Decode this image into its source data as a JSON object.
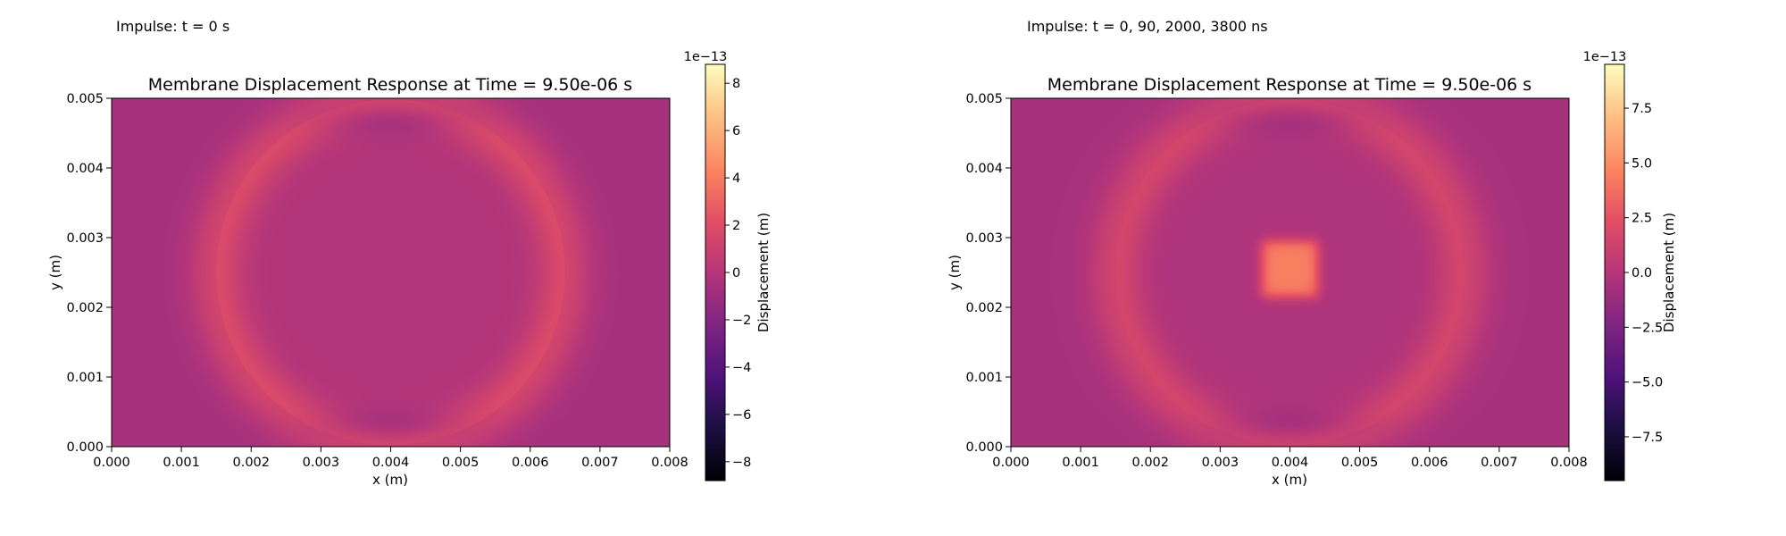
{
  "chart_data": [
    {
      "type": "heatmap",
      "panel_label": "Impulse: t = 0 s",
      "title": "Membrane Displacement Response at Time = 9.50e-06 s",
      "xlabel": "x (m)",
      "ylabel": "y (m)",
      "xlim": [
        0,
        0.008
      ],
      "ylim": [
        0,
        0.005
      ],
      "xticks": [
        "0.000",
        "0.001",
        "0.002",
        "0.003",
        "0.004",
        "0.005",
        "0.006",
        "0.007",
        "0.008"
      ],
      "yticks": [
        "0.000",
        "0.001",
        "0.002",
        "0.003",
        "0.004",
        "0.005"
      ],
      "colormap": "magma",
      "colorbar": {
        "label": "Displacement (m)",
        "exponent": "1e−13",
        "vmin": -8.8,
        "vmax": 8.8,
        "ticks": [
          -8,
          -6,
          -4,
          -2,
          0,
          2,
          4,
          6,
          8
        ],
        "tick_labels": [
          "−8",
          "−6",
          "−4",
          "−2",
          "0",
          "2",
          "4",
          "6",
          "8"
        ]
      },
      "field": {
        "base": -0.6,
        "ring": {
          "cx": 0.004,
          "cy": 0.0025,
          "rx": 0.0025,
          "ry": 0.00248,
          "width": 0.00028,
          "amplitude": 1.9
        },
        "lobes": [
          {
            "x": 0.004,
            "y": 0.0047,
            "sx": 0.0008,
            "sy": 0.00018,
            "amplitude": -1.3
          },
          {
            "x": 0.004,
            "y": 0.0003,
            "sx": 0.0008,
            "sy": 0.00018,
            "amplitude": -1.3
          }
        ],
        "inner_offset": 0.45,
        "square": null
      }
    },
    {
      "type": "heatmap",
      "panel_label": "Impulse: t = 0, 90, 2000, 3800 ns",
      "title": "Membrane Displacement Response at Time = 9.50e-06 s",
      "xlabel": "x (m)",
      "ylabel": "y (m)",
      "xlim": [
        0,
        0.008
      ],
      "ylim": [
        0,
        0.005
      ],
      "xticks": [
        "0.000",
        "0.001",
        "0.002",
        "0.003",
        "0.004",
        "0.005",
        "0.006",
        "0.007",
        "0.008"
      ],
      "yticks": [
        "0.000",
        "0.001",
        "0.002",
        "0.003",
        "0.004",
        "0.005"
      ],
      "colormap": "magma",
      "colorbar": {
        "label": "Displacement (m)",
        "exponent": "1e−13",
        "vmin": -9.5,
        "vmax": 9.5,
        "ticks": [
          -7.5,
          -5.0,
          -2.5,
          0.0,
          2.5,
          5.0,
          7.5
        ],
        "tick_labels": [
          "−7.5",
          "−5.0",
          "−2.5",
          "0.0",
          "2.5",
          "5.0",
          "7.5"
        ]
      },
      "field": {
        "base": -0.6,
        "ring": {
          "cx": 0.004,
          "cy": 0.0025,
          "rx": 0.0025,
          "ry": 0.00248,
          "width": 0.00028,
          "amplitude": 1.9
        },
        "lobes": [
          {
            "x": 0.004,
            "y": 0.0047,
            "sx": 0.0008,
            "sy": 0.00018,
            "amplitude": -1.3
          },
          {
            "x": 0.004,
            "y": 0.0003,
            "sx": 0.0008,
            "sy": 0.00018,
            "amplitude": -1.3
          }
        ],
        "inner_offset": 0.3,
        "square": {
          "x0": 0.0036,
          "x1": 0.0044,
          "y0": 0.00215,
          "y1": 0.00295,
          "amplitude": 4.8
        }
      }
    }
  ]
}
